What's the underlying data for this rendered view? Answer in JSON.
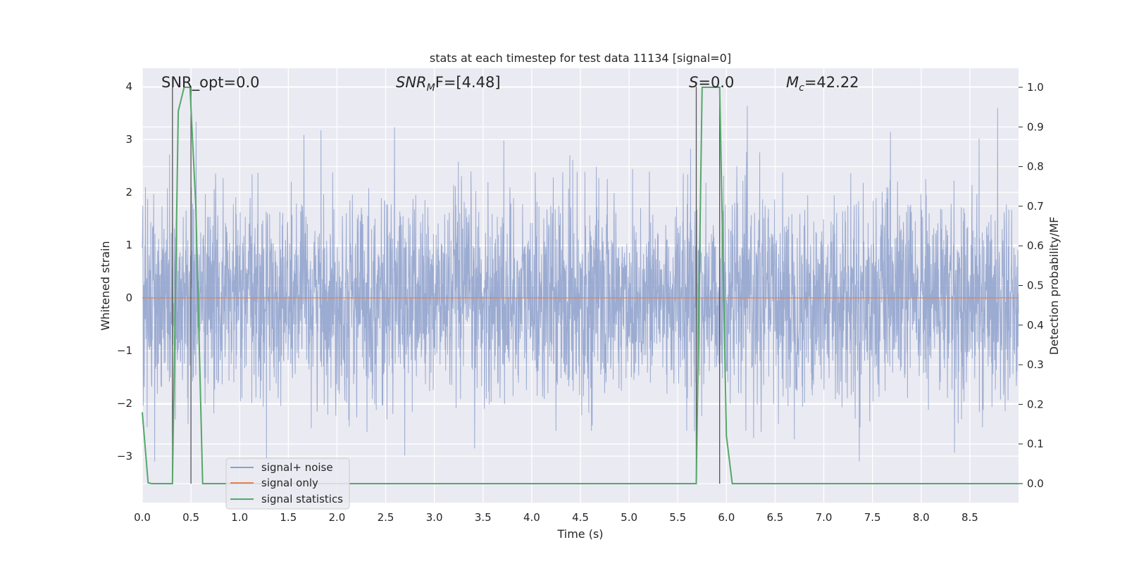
{
  "chart_data": {
    "type": "line",
    "title": "stats at each timestep for test data 11134 [signal=0]",
    "xlabel": "Time (s)",
    "ylabel": "Whitened strain",
    "y2label": "Detection probability/MF",
    "xlim": [
      0,
      9.0
    ],
    "ylim": [
      -3.88,
      4.35
    ],
    "y2lim": [
      -0.048,
      1.048
    ],
    "x_ticks": [
      "0.0",
      "0.5",
      "1.0",
      "1.5",
      "2.0",
      "2.5",
      "3.0",
      "3.5",
      "4.0",
      "4.5",
      "5.0",
      "5.5",
      "6.0",
      "6.5",
      "7.0",
      "7.5",
      "8.0",
      "8.5"
    ],
    "y_ticks": [
      "4",
      "3",
      "2",
      "1",
      "0",
      "−1",
      "−2",
      "−3"
    ],
    "y2_ticks": [
      "1.0",
      "0.9",
      "0.8",
      "0.7",
      "0.6",
      "0.5",
      "0.4",
      "0.3",
      "0.2",
      "0.1",
      "0.0"
    ],
    "grid": true,
    "legend_position": "lower-left",
    "annotations": {
      "snr_opt": "SNR_opt=0.0",
      "snr_mf_main": "SNR",
      "snr_mf_sub": "M",
      "snr_mf_rest": "F=[4.48]",
      "s_main": "S",
      "s_rest": "=0.0",
      "mc_main": "M",
      "mc_sub": "c",
      "mc_rest": "=42.22"
    },
    "series": [
      {
        "name": "signal+ noise",
        "color": "#8da0cb",
        "kind": "noise",
        "y_range": [
          -3.1,
          3.8
        ]
      },
      {
        "name": "signal only",
        "color": "#dd8452",
        "x": [
          0,
          9.0
        ],
        "y": [
          0,
          0
        ]
      },
      {
        "name": "signal statistics",
        "color": "#55a868",
        "axis": "right",
        "x": [
          0.0,
          0.06,
          0.1,
          0.31,
          0.37,
          0.43,
          0.49,
          0.55,
          0.62,
          5.69,
          5.75,
          5.81,
          5.87,
          5.93,
          6.0,
          6.06,
          9.0
        ],
        "y": [
          0.18,
          0.002,
          0.0,
          0.0,
          0.94,
          1.0,
          1.0,
          0.7,
          0.0,
          0.0,
          1.0,
          1.0,
          1.0,
          1.0,
          0.12,
          0.0,
          0.0
        ]
      }
    ],
    "vertical_lines": [
      0.31,
      0.5,
      5.69,
      5.93
    ]
  }
}
